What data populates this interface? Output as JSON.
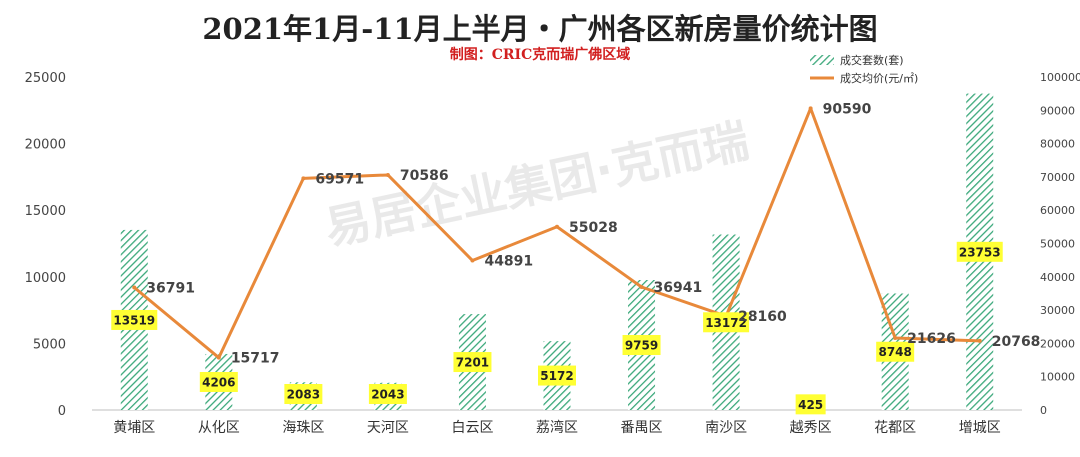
{
  "chart_data": {
    "type": "bar",
    "title": "2021年1月-11月上半月・广州各区新房量价统计图",
    "subtitle": "制图：CRIC克而瑞广佛区域",
    "categories": [
      "黄埔区",
      "从化区",
      "海珠区",
      "天河区",
      "白云区",
      "荔湾区",
      "番禺区",
      "南沙区",
      "越秀区",
      "花都区",
      "增城区"
    ],
    "series": [
      {
        "name": "成交套数(套)",
        "type": "bar",
        "axis": "left",
        "color": "#3aa87a",
        "values": [
          13519,
          4206,
          2083,
          2043,
          7201,
          5172,
          9759,
          13172,
          425,
          8748,
          23753
        ]
      },
      {
        "name": "成交均价(元/㎡)",
        "type": "line",
        "axis": "right",
        "color": "#e8893a",
        "values": [
          36791,
          15717,
          69571,
          70586,
          44891,
          55028,
          36941,
          28160,
          90590,
          21626,
          20768
        ]
      }
    ],
    "left_ticks": [
      "0",
      "5000",
      "10000",
      "15000",
      "20000",
      "25000"
    ],
    "right_ticks": [
      "0",
      "10000",
      "20000",
      "30000",
      "40000",
      "50000",
      "60000",
      "70000",
      "80000",
      "90000",
      "100000"
    ],
    "ylim_left": [
      0,
      25000
    ],
    "ylim_right": [
      0,
      100000
    ],
    "legend_position": "top-right",
    "watermark": "易居企业集团·克而瑞",
    "bar_label_bg": "#ffff33"
  }
}
